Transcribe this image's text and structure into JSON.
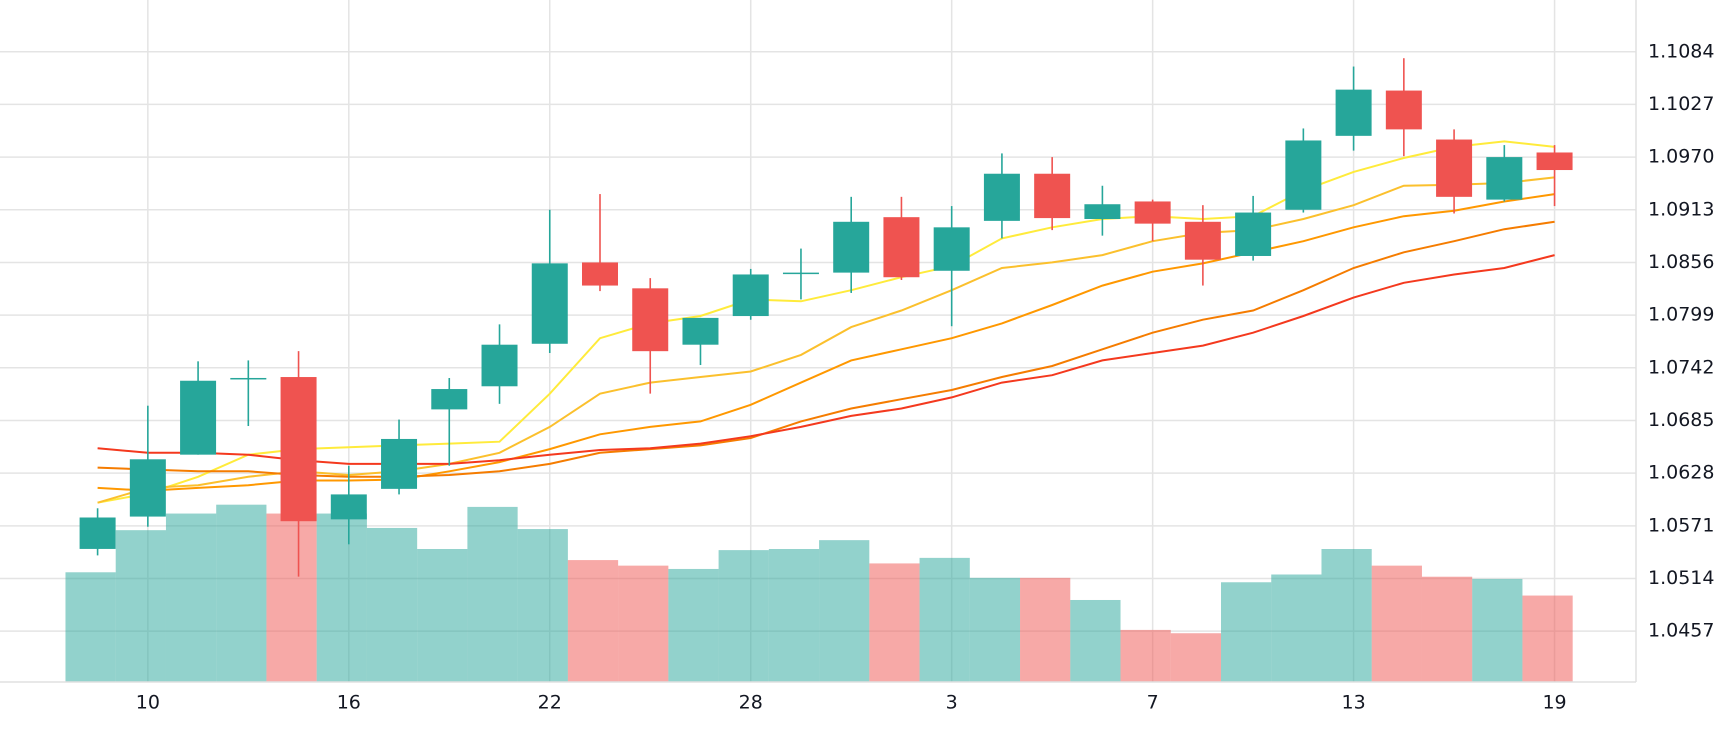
{
  "chart_data": {
    "type": "candlestick",
    "categories": [
      null,
      "10",
      null,
      null,
      null,
      "16",
      null,
      null,
      null,
      "22",
      null,
      null,
      null,
      "28",
      null,
      null,
      null,
      "3",
      null,
      null,
      null,
      "7",
      null,
      null,
      null,
      "13",
      null,
      null,
      null,
      "19"
    ],
    "open": [
      1.0546,
      1.0581,
      1.0648,
      1.0731,
      1.0732,
      1.0578,
      1.0611,
      1.0697,
      1.0722,
      1.0768,
      1.0856,
      1.0828,
      1.0767,
      1.0798,
      1.0845,
      1.0845,
      1.0905,
      1.0847,
      1.0901,
      1.0952,
      1.0903,
      1.0922,
      1.09,
      1.0863,
      1.0913,
      1.0993,
      1.1042,
      1.0989,
      1.0924,
      1.0975
    ],
    "high": [
      1.059,
      1.0701,
      1.0749,
      1.075,
      1.076,
      1.0636,
      1.0686,
      1.0731,
      1.0789,
      1.0913,
      1.093,
      1.0839,
      1.0796,
      1.0849,
      1.0871,
      1.0927,
      1.0927,
      1.0917,
      1.0974,
      1.097,
      1.0939,
      1.0924,
      1.0918,
      1.0928,
      1.1001,
      1.1068,
      1.1077,
      1.1,
      1.0983,
      1.0983
    ],
    "low": [
      1.0539,
      1.057,
      1.0648,
      1.0679,
      1.0516,
      1.0551,
      1.0605,
      1.0636,
      1.0703,
      1.0758,
      1.0825,
      1.0714,
      1.0745,
      1.0794,
      1.0816,
      1.0823,
      1.0837,
      1.0787,
      1.0882,
      1.0891,
      1.0885,
      1.0879,
      1.0831,
      1.0858,
      1.091,
      1.0977,
      1.0971,
      1.0909,
      1.0922,
      1.0917
    ],
    "close": [
      1.058,
      1.0643,
      1.0728,
      1.0731,
      1.0576,
      1.0605,
      1.0665,
      1.0719,
      1.0767,
      1.0855,
      1.0831,
      1.076,
      1.0796,
      1.0843,
      1.0845,
      1.09,
      1.084,
      1.0894,
      1.0952,
      1.0904,
      1.0919,
      1.0898,
      1.0859,
      1.091,
      1.0988,
      1.1043,
      1.1,
      1.0927,
      1.097,
      1.0956
    ],
    "volume": [
      99,
      137,
      152,
      160,
      152,
      152,
      139,
      120,
      158,
      138,
      110,
      105,
      102,
      119,
      120,
      128,
      107,
      112,
      94,
      94,
      74,
      47,
      44,
      90,
      97,
      120,
      105,
      95,
      93,
      78
    ],
    "up_color": "#26a69a",
    "down_color": "#ef5350",
    "series": [
      {
        "color": "#ffeb3b",
        "values": [
          1.0596,
          1.0606,
          1.0624,
          1.0648,
          1.0654,
          1.0656,
          1.0658,
          1.066,
          1.0662,
          1.0714,
          1.0774,
          1.079,
          1.0798,
          1.0816,
          1.0814,
          1.0826,
          1.084,
          1.0852,
          1.0882,
          1.0894,
          1.0903,
          1.0906,
          1.0903,
          1.0906,
          1.0934,
          1.0954,
          1.0969,
          1.0981,
          1.0987,
          1.0981
        ]
      },
      {
        "color": "#fbc02d",
        "values": [
          1.0596,
          1.0612,
          1.0615,
          1.0624,
          1.063,
          1.0626,
          1.063,
          1.0638,
          1.065,
          1.0678,
          1.0714,
          1.0726,
          1.0732,
          1.0738,
          1.0756,
          1.0786,
          1.0804,
          1.0826,
          1.085,
          1.0856,
          1.0864,
          1.0879,
          1.0888,
          1.0891,
          1.0903,
          1.0918,
          1.0939,
          1.094,
          1.0942,
          1.0948
        ]
      },
      {
        "color": "#ff9800",
        "values": [
          1.0612,
          1.0609,
          1.0612,
          1.0615,
          1.062,
          1.062,
          1.0621,
          1.063,
          1.064,
          1.0654,
          1.067,
          1.0678,
          1.0684,
          1.0702,
          1.0726,
          1.075,
          1.0762,
          1.0774,
          1.079,
          1.081,
          1.0831,
          1.0846,
          1.0855,
          1.0867,
          1.0879,
          1.0894,
          1.0906,
          1.0912,
          1.0922,
          1.093
        ]
      },
      {
        "color": "#f57c00",
        "values": [
          1.0634,
          1.0632,
          1.063,
          1.063,
          1.0626,
          1.0624,
          1.0624,
          1.0626,
          1.063,
          1.0638,
          1.065,
          1.0654,
          1.0658,
          1.0666,
          1.0684,
          1.0698,
          1.0708,
          1.0718,
          1.0732,
          1.0744,
          1.0762,
          1.078,
          1.0794,
          1.0804,
          1.0826,
          1.085,
          1.0867,
          1.0879,
          1.0892,
          1.09
        ]
      },
      {
        "color": "#f4391e",
        "values": [
          1.0655,
          1.065,
          1.065,
          1.0648,
          1.0642,
          1.0638,
          1.0638,
          1.0638,
          1.0642,
          1.0648,
          1.0653,
          1.0655,
          1.066,
          1.0668,
          1.0678,
          1.069,
          1.0698,
          1.071,
          1.0726,
          1.0734,
          1.075,
          1.0758,
          1.0766,
          1.078,
          1.0798,
          1.0818,
          1.0834,
          1.0843,
          1.085,
          1.0864
        ]
      }
    ],
    "ylim": [
      1.0402,
      1.114
    ],
    "yticks": [
      1.1084,
      1.1027,
      {
        "value": 1.097,
        "label": "1.0970"
      },
      1.0913,
      1.0856,
      1.0799,
      1.0742,
      1.0685,
      1.0628,
      1.0571,
      1.0514,
      1.0457
    ],
    "grid": true
  }
}
